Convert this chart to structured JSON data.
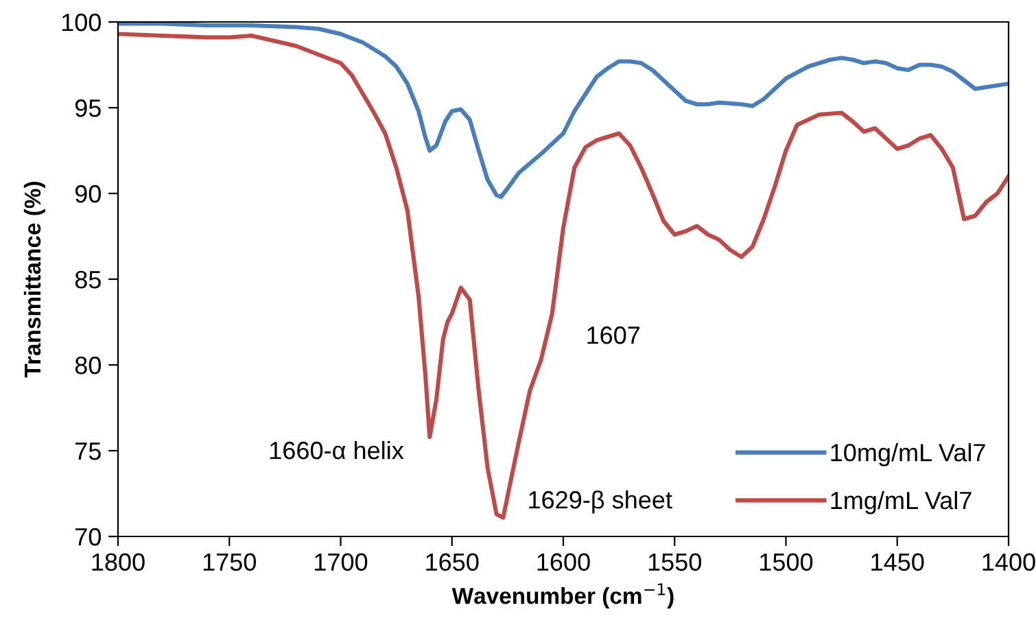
{
  "chart_data": {
    "type": "line",
    "xlabel": "Wavenumber (cm$^{−1}$)",
    "ylabel": "Transmittance (%)",
    "xlim": [
      1800,
      1400
    ],
    "ylim": [
      70,
      100
    ],
    "xticks": [
      1800,
      1750,
      1700,
      1650,
      1600,
      1550,
      1500,
      1450,
      1400
    ],
    "yticks": [
      70,
      75,
      80,
      85,
      90,
      95,
      100
    ],
    "grid": false,
    "legend": "bottom right",
    "marker": "none",
    "line_style": "solid",
    "annotations": [
      "1660-α helix",
      "1629-β sheet",
      "1607"
    ],
    "series": [
      {
        "name": "10mg/mL Val7",
        "color": "#4a7ebb",
        "x": [
          1800,
          1780,
          1760,
          1740,
          1720,
          1710,
          1700,
          1690,
          1680,
          1675,
          1670,
          1665,
          1662,
          1660,
          1657,
          1653,
          1650,
          1646,
          1642,
          1638,
          1634,
          1630,
          1628,
          1625,
          1620,
          1610,
          1600,
          1595,
          1590,
          1585,
          1580,
          1575,
          1570,
          1565,
          1560,
          1555,
          1550,
          1545,
          1540,
          1535,
          1530,
          1520,
          1515,
          1510,
          1505,
          1500,
          1490,
          1480,
          1475,
          1470,
          1465,
          1460,
          1455,
          1450,
          1445,
          1440,
          1435,
          1430,
          1425,
          1420,
          1415,
          1410,
          1400
        ],
        "values": [
          99.9,
          99.9,
          99.8,
          99.8,
          99.7,
          99.6,
          99.3,
          98.8,
          98.0,
          97.4,
          96.4,
          94.8,
          93.3,
          92.5,
          92.8,
          94.2,
          94.8,
          94.9,
          94.3,
          92.5,
          90.8,
          89.9,
          89.8,
          90.3,
          91.2,
          92.3,
          93.5,
          94.8,
          95.8,
          96.8,
          97.3,
          97.7,
          97.7,
          97.6,
          97.2,
          96.6,
          96.0,
          95.4,
          95.2,
          95.2,
          95.3,
          95.2,
          95.1,
          95.5,
          96.1,
          96.7,
          97.4,
          97.8,
          97.9,
          97.8,
          97.6,
          97.7,
          97.6,
          97.3,
          97.2,
          97.5,
          97.5,
          97.4,
          97.1,
          96.6,
          96.1,
          96.2,
          96.4
        ]
      },
      {
        "name": "1mg/mL Val7",
        "color": "#be4b48",
        "x": [
          1800,
          1780,
          1760,
          1750,
          1740,
          1730,
          1720,
          1710,
          1700,
          1695,
          1690,
          1685,
          1680,
          1675,
          1670,
          1665,
          1662,
          1660,
          1657,
          1654,
          1652,
          1650,
          1646,
          1642,
          1638,
          1634,
          1630,
          1627,
          1624,
          1620,
          1615,
          1610,
          1605,
          1600,
          1595,
          1590,
          1585,
          1580,
          1575,
          1570,
          1565,
          1560,
          1555,
          1550,
          1545,
          1540,
          1535,
          1530,
          1525,
          1520,
          1515,
          1510,
          1505,
          1500,
          1495,
          1490,
          1485,
          1475,
          1470,
          1465,
          1460,
          1455,
          1450,
          1445,
          1440,
          1435,
          1430,
          1425,
          1420,
          1415,
          1410,
          1405,
          1400
        ],
        "values": [
          99.3,
          99.2,
          99.1,
          99.1,
          99.2,
          98.9,
          98.6,
          98.1,
          97.6,
          96.9,
          95.8,
          94.7,
          93.5,
          91.5,
          89.0,
          84.0,
          79.5,
          75.8,
          78.0,
          81.5,
          82.5,
          83.0,
          84.5,
          83.8,
          78.5,
          74.0,
          71.3,
          71.1,
          73.0,
          75.5,
          78.5,
          80.3,
          83.0,
          88.0,
          91.5,
          92.7,
          93.1,
          93.3,
          93.5,
          92.8,
          91.5,
          90.0,
          88.4,
          87.6,
          87.8,
          88.1,
          87.6,
          87.3,
          86.7,
          86.3,
          86.9,
          88.5,
          90.4,
          92.5,
          94.0,
          94.3,
          94.6,
          94.7,
          94.2,
          93.6,
          93.8,
          93.2,
          92.6,
          92.8,
          93.2,
          93.4,
          92.6,
          91.5,
          88.5,
          88.7,
          89.5,
          90.0,
          91.0
        ]
      }
    ]
  }
}
